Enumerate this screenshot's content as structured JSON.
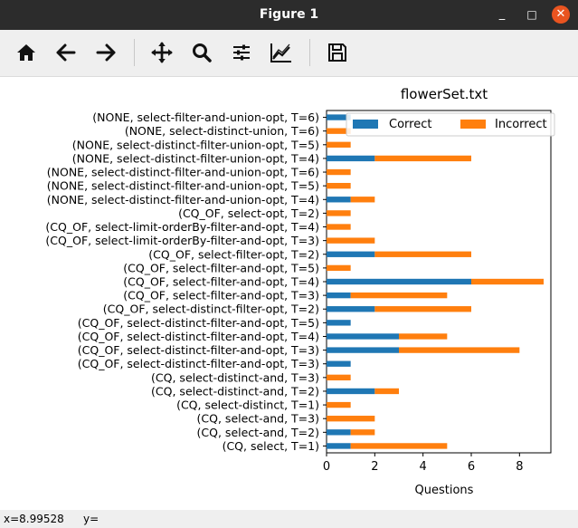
{
  "window": {
    "title": "Figure 1",
    "minimize_glyph": "_",
    "maximize_glyph": "□",
    "close_glyph": "✕"
  },
  "toolbar": {
    "items": [
      "home-icon",
      "back-arrow-icon",
      "forward-arrow-icon",
      "pan-move-icon",
      "zoom-magnifier-icon",
      "configure-subplots-icon",
      "edit-axis-curves-icon",
      "save-floppy-icon"
    ]
  },
  "status": {
    "x_text": "x=8.99528",
    "y_text": "y="
  },
  "colors": {
    "correct": "#1f77b4",
    "incorrect": "#ff7f0e"
  },
  "chart_data": {
    "type": "bar",
    "orientation": "horizontal",
    "stacked": true,
    "title": "flowerSet.txt",
    "xlabel": "Questions",
    "ylabel": "",
    "xlim": [
      0,
      9.3
    ],
    "xticks": [
      0,
      2,
      4,
      6,
      8
    ],
    "legend_position": "top-right",
    "categories": [
      "(CQ, select, T=1)",
      "(CQ, select-and, T=2)",
      "(CQ, select-and, T=3)",
      "(CQ, select-distinct, T=1)",
      "(CQ, select-distinct-and, T=2)",
      "(CQ, select-distinct-and, T=3)",
      "(CQ_OF, select-distinct-filter-and-opt, T=3)",
      "(CQ_OF, select-distinct-filter-and-opt, T=3)",
      "(CQ_OF, select-distinct-filter-and-opt, T=4)",
      "(CQ_OF, select-distinct-filter-and-opt, T=5)",
      "(CQ_OF, select-distinct-filter-opt, T=2)",
      "(CQ_OF, select-filter-and-opt, T=3)",
      "(CQ_OF, select-filter-and-opt, T=4)",
      "(CQ_OF, select-filter-and-opt, T=5)",
      "(CQ_OF, select-filter-opt, T=2)",
      "(CQ_OF, select-limit-orderBy-filter-and-opt, T=3)",
      "(CQ_OF, select-limit-orderBy-filter-and-opt, T=4)",
      "(CQ_OF, select-opt, T=2)",
      "(NONE, select-distinct-filter-and-union-opt, T=4)",
      "(NONE, select-distinct-filter-and-union-opt, T=5)",
      "(NONE, select-distinct-filter-and-union-opt, T=6)",
      "(NONE, select-distinct-filter-union-opt, T=4)",
      "(NONE, select-distinct-filter-union-opt, T=5)",
      "(NONE, select-distinct-union, T=6)",
      "(NONE, select-filter-and-union-opt, T=6)"
    ],
    "series": [
      {
        "name": "Correct",
        "values": [
          1,
          1,
          0,
          0,
          2,
          0,
          1,
          3,
          3,
          1,
          2,
          1,
          6,
          0,
          2,
          0,
          0,
          0,
          1,
          0,
          0,
          2,
          0,
          0,
          1
        ]
      },
      {
        "name": "Incorrect",
        "values": [
          4,
          1,
          2,
          1,
          1,
          1,
          0,
          5,
          2,
          0,
          4,
          4,
          3,
          1,
          4,
          2,
          1,
          1,
          1,
          1,
          1,
          4,
          1,
          1,
          0
        ]
      }
    ]
  }
}
